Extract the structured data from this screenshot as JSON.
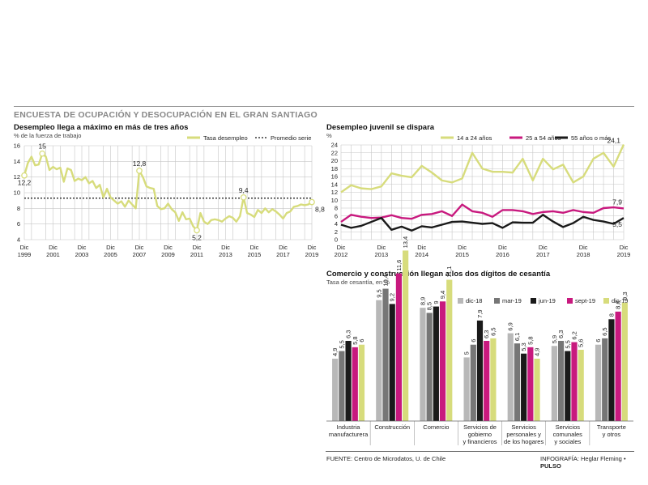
{
  "header": {
    "title": "ENCUESTA DE OCUPACIÓN Y DESOCUPACIÓN EN EL GRAN SANTIAGO"
  },
  "colors": {
    "lime": "#d7dc7c",
    "magenta": "#c8197e",
    "black": "#1a1a1a",
    "dark_gray": "#767676",
    "light_gray": "#b8b8b8",
    "grid": "#c6c6c6"
  },
  "footer": {
    "source": "FUENTE: Centro de Microdatos, U. de Chile",
    "credit": "INFOGRAFÍA: Heglar Fleming",
    "brand": "PULSO"
  },
  "chart_data": [
    {
      "type": "line",
      "title": "Desempleo llega a máximo en más de tres años",
      "subtitle": "% de la fuerza de trabajo",
      "ylim": [
        4,
        16
      ],
      "yticks": [
        4,
        6,
        8,
        10,
        12,
        14,
        16
      ],
      "xlim": [
        1999.92,
        2019.92
      ],
      "xticks": [
        {
          "at": 1999.92,
          "l1": "Dic",
          "l2": "1999"
        },
        {
          "at": 2001.92,
          "l1": "Dic",
          "l2": "2001"
        },
        {
          "at": 2003.92,
          "l1": "Dic",
          "l2": "2003"
        },
        {
          "at": 2005.92,
          "l1": "Dic",
          "l2": "2005"
        },
        {
          "at": 2007.92,
          "l1": "Dic",
          "l2": "2007"
        },
        {
          "at": 2009.92,
          "l1": "Dic",
          "l2": "2009"
        },
        {
          "at": 2011.92,
          "l1": "Dic",
          "l2": "2011"
        },
        {
          "at": 2013.92,
          "l1": "Dic",
          "l2": "2013"
        },
        {
          "at": 2015.92,
          "l1": "Dic",
          "l2": "2015"
        },
        {
          "at": 2017.92,
          "l1": "Dic",
          "l2": "2017"
        },
        {
          "at": 2019.92,
          "l1": "Dic",
          "l2": "2019"
        }
      ],
      "legend": {
        "series": "Tasa desempleo",
        "reference": "Promedio serie"
      },
      "reference_value": 9.3,
      "x": [
        1999.92,
        2000.17,
        2000.42,
        2000.67,
        2000.92,
        2001.17,
        2001.42,
        2001.67,
        2001.92,
        2002.17,
        2002.42,
        2002.67,
        2002.92,
        2003.17,
        2003.42,
        2003.67,
        2003.92,
        2004.17,
        2004.42,
        2004.67,
        2004.92,
        2005.17,
        2005.42,
        2005.67,
        2005.92,
        2006.17,
        2006.42,
        2006.67,
        2006.92,
        2007.17,
        2007.42,
        2007.67,
        2007.92,
        2008.17,
        2008.42,
        2008.67,
        2008.92,
        2009.17,
        2009.42,
        2009.67,
        2009.92,
        2010.17,
        2010.42,
        2010.67,
        2010.92,
        2011.17,
        2011.42,
        2011.67,
        2011.92,
        2012.17,
        2012.42,
        2012.67,
        2012.92,
        2013.17,
        2013.42,
        2013.67,
        2013.92,
        2014.17,
        2014.42,
        2014.67,
        2014.92,
        2015.17,
        2015.42,
        2015.67,
        2015.92,
        2016.17,
        2016.42,
        2016.67,
        2016.92,
        2017.17,
        2017.42,
        2017.67,
        2017.92,
        2018.17,
        2018.42,
        2018.67,
        2018.92,
        2019.17,
        2019.42,
        2019.67,
        2019.92
      ],
      "values": [
        12.2,
        13.8,
        14.6,
        13.5,
        13.6,
        15.0,
        14.6,
        12.9,
        13.3,
        13.0,
        13.2,
        11.4,
        13.1,
        12.9,
        11.5,
        11.8,
        11.6,
        12.0,
        11.2,
        11.5,
        10.6,
        11.0,
        9.4,
        10.5,
        9.4,
        9.0,
        8.6,
        8.9,
        8.2,
        9.0,
        8.5,
        8.0,
        12.8,
        12.0,
        10.8,
        10.6,
        10.5,
        8.3,
        7.9,
        8.0,
        8.6,
        7.9,
        7.5,
        6.4,
        7.5,
        6.6,
        6.7,
        5.7,
        5.2,
        7.4,
        6.3,
        6.0,
        6.5,
        6.6,
        6.5,
        6.3,
        6.7,
        7.0,
        6.8,
        6.3,
        7.0,
        9.4,
        7.4,
        7.2,
        6.9,
        7.8,
        7.4,
        8.0,
        7.5,
        7.9,
        7.6,
        7.2,
        6.7,
        7.4,
        7.6,
        8.2,
        8.3,
        8.5,
        8.4,
        8.5,
        8.8
      ],
      "labels": [
        {
          "x": 1999.92,
          "y": 12.2,
          "text": "12,2",
          "pos": "below"
        },
        {
          "x": 2001.17,
          "y": 15.0,
          "text": "15",
          "pos": "above"
        },
        {
          "x": 2007.92,
          "y": 12.8,
          "text": "12,8",
          "pos": "above"
        },
        {
          "x": 2011.92,
          "y": 5.2,
          "text": "5,2",
          "pos": "below"
        },
        {
          "x": 2015.17,
          "y": 9.4,
          "text": "9,4",
          "pos": "above"
        },
        {
          "x": 2019.92,
          "y": 8.8,
          "text": "8,8",
          "pos": "below"
        }
      ]
    },
    {
      "type": "line",
      "title": "Desempleo juvenil se dispara",
      "ylabel": "%",
      "ylim": [
        0,
        24
      ],
      "yticks": [
        0,
        2,
        4,
        6,
        8,
        10,
        12,
        14,
        16,
        18,
        20,
        22,
        24
      ],
      "xlim": [
        2012.92,
        2019.92
      ],
      "xticks": [
        {
          "at": 2012.92,
          "l1": "Dic",
          "l2": "2012"
        },
        {
          "at": 2013.92,
          "l1": "Dic",
          "l2": "2013"
        },
        {
          "at": 2014.92,
          "l1": "Dic",
          "l2": "2014"
        },
        {
          "at": 2015.92,
          "l1": "Dic",
          "l2": "2015"
        },
        {
          "at": 2016.92,
          "l1": "Dic",
          "l2": "2016"
        },
        {
          "at": 2017.92,
          "l1": "Dic",
          "l2": "2017"
        },
        {
          "at": 2018.92,
          "l1": "Dic",
          "l2": "2018"
        },
        {
          "at": 2019.92,
          "l1": "Dic",
          "l2": "2019"
        }
      ],
      "x": [
        2012.92,
        2013.17,
        2013.42,
        2013.67,
        2013.92,
        2014.17,
        2014.42,
        2014.67,
        2014.92,
        2015.17,
        2015.42,
        2015.67,
        2015.92,
        2016.17,
        2016.42,
        2016.67,
        2016.92,
        2017.17,
        2017.42,
        2017.67,
        2017.92,
        2018.17,
        2018.42,
        2018.67,
        2018.92,
        2019.17,
        2019.42,
        2019.67,
        2019.92
      ],
      "series": [
        {
          "name": "14 a 24 años",
          "color": "#d7dc7c",
          "values": [
            12.0,
            13.8,
            13.0,
            12.8,
            13.5,
            16.8,
            16.2,
            15.8,
            18.7,
            17.0,
            15.0,
            14.5,
            15.5,
            22.0,
            18.0,
            17.2,
            17.2,
            17.0,
            20.5,
            15.0,
            20.5,
            17.8,
            19.0,
            14.5,
            16.0,
            20.5,
            22.0,
            18.5,
            24.1
          ]
        },
        {
          "name": "25 a 54 años",
          "color": "#c8197e",
          "values": [
            4.5,
            6.3,
            5.8,
            5.5,
            5.6,
            6.2,
            5.5,
            5.3,
            6.3,
            6.5,
            7.2,
            6.0,
            8.9,
            7.2,
            6.8,
            5.8,
            7.5,
            7.5,
            7.2,
            6.5,
            7.0,
            7.2,
            6.8,
            7.5,
            7.0,
            6.8,
            8.0,
            8.2,
            7.9
          ]
        },
        {
          "name": "55 años o más",
          "color": "#1a1a1a",
          "values": [
            3.8,
            3.0,
            3.5,
            4.5,
            5.5,
            2.5,
            3.3,
            2.3,
            3.4,
            3.1,
            3.8,
            4.5,
            4.6,
            4.3,
            4.0,
            4.2,
            3.0,
            4.4,
            4.3,
            4.3,
            6.3,
            4.6,
            3.2,
            4.2,
            5.8,
            5.0,
            4.6,
            4.0,
            5.5
          ]
        }
      ],
      "labels": [
        {
          "x": 2019.92,
          "y": 24.1,
          "text": "24,1",
          "pos": "left"
        },
        {
          "x": 2019.92,
          "y": 7.9,
          "text": "7,9",
          "pos": "above"
        },
        {
          "x": 2019.92,
          "y": 5.5,
          "text": "5,5",
          "pos": "below"
        }
      ]
    },
    {
      "type": "bar",
      "title": "Comercio y construcción llegan a los dos dígitos de cesantía",
      "subtitle": "Tasa de cesantía, en %",
      "categories": [
        [
          "Industria",
          "manufacturera"
        ],
        [
          "Construcción"
        ],
        [
          "Comercio"
        ],
        [
          "Servicios de",
          "gobierno",
          "y financieros"
        ],
        [
          "Servicios",
          "personales y",
          "de los hogares"
        ],
        [
          "Servicios",
          "comunales",
          "y sociales"
        ],
        [
          "Transporte",
          "y otros"
        ]
      ],
      "ylim": [
        0,
        14
      ],
      "series": [
        {
          "name": "dic-18",
          "color": "#b8b8b8",
          "values": [
            4.9,
            9.5,
            8.9,
            5,
            6.9,
            5.9,
            6
          ]
        },
        {
          "name": "mar-19",
          "color": "#767676",
          "values": [
            5.5,
            10.4,
            8.5,
            6,
            6.1,
            6.3,
            6.5
          ]
        },
        {
          "name": "jun-19",
          "color": "#1a1a1a",
          "values": [
            6.3,
            9.2,
            9,
            7.9,
            5.3,
            5.5,
            8
          ]
        },
        {
          "name": "sept-19",
          "color": "#c8197e",
          "values": [
            5.8,
            11.6,
            9.4,
            6.3,
            5.8,
            6.2,
            8.6
          ]
        },
        {
          "name": "dic-19",
          "color": "#d7dc7c",
          "values": [
            6,
            13.4,
            11.1,
            6.5,
            4.9,
            5.6,
            9.3
          ]
        }
      ],
      "value_labels": [
        [
          "4,9",
          "5,5",
          "6,3",
          "5,8",
          "6"
        ],
        [
          "9,5",
          "10,4",
          "9,2",
          "11,6",
          "13,4"
        ],
        [
          "8,9",
          "8,5",
          "9",
          "9,4",
          "11,1"
        ],
        [
          "5",
          "6",
          "7,9",
          "6,3",
          "6,5"
        ],
        [
          "6,9",
          "6,1",
          "5,3",
          "5,8",
          "4,9"
        ],
        [
          "5,9",
          "6,3",
          "5,5",
          "6,2",
          "5,6"
        ],
        [
          "6",
          "6,5",
          "8",
          "8,6",
          "9,3"
        ]
      ]
    }
  ]
}
